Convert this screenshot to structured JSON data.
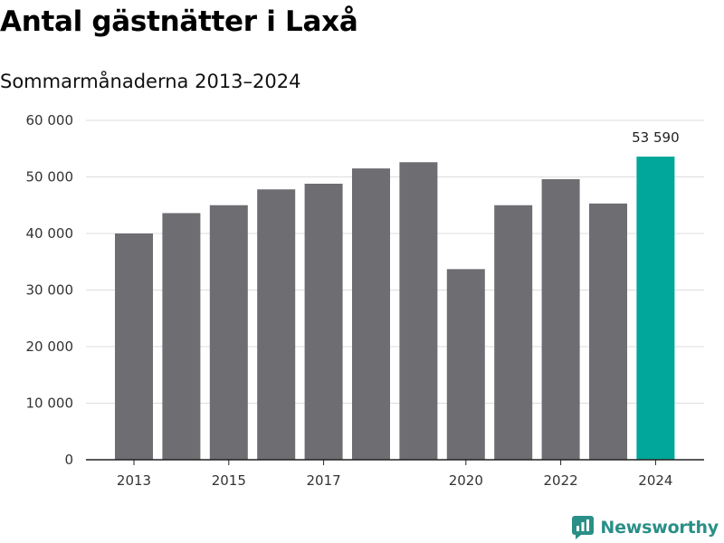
{
  "title": "Antal gästnätter i Laxå",
  "subtitle": "Sommarmånaderna 2013–2024",
  "brand": {
    "name": "Newsworthy",
    "icon": "newsworthy-logo-icon"
  },
  "colors": {
    "bar": "#6e6d72",
    "highlight": "#00a79a",
    "grid": "#dddddd",
    "axis": "#222222",
    "brand": "#2a8f87"
  },
  "chart_data": {
    "type": "bar",
    "categories": [
      "2013",
      "2014",
      "2015",
      "2016",
      "2017",
      "2018",
      "2019",
      "2020",
      "2021",
      "2022",
      "2023",
      "2024"
    ],
    "x_tick_labels": [
      "2013",
      "",
      "2015",
      "",
      "2017",
      "",
      "",
      "2020",
      "",
      "2022",
      "",
      "2024"
    ],
    "values": [
      40000,
      43600,
      45000,
      47800,
      48800,
      51500,
      52600,
      33700,
      45000,
      49600,
      45300,
      53590
    ],
    "highlight_index": 11,
    "data_labels": [
      {
        "index": 11,
        "text": "53 590"
      }
    ],
    "y_ticks": [
      0,
      10000,
      20000,
      30000,
      40000,
      50000,
      60000
    ],
    "y_tick_labels": [
      "0",
      "10 000",
      "20 000",
      "30 000",
      "40 000",
      "50 000",
      "60 000"
    ],
    "ylim": [
      0,
      60000
    ],
    "grid": true,
    "legend": "none"
  }
}
